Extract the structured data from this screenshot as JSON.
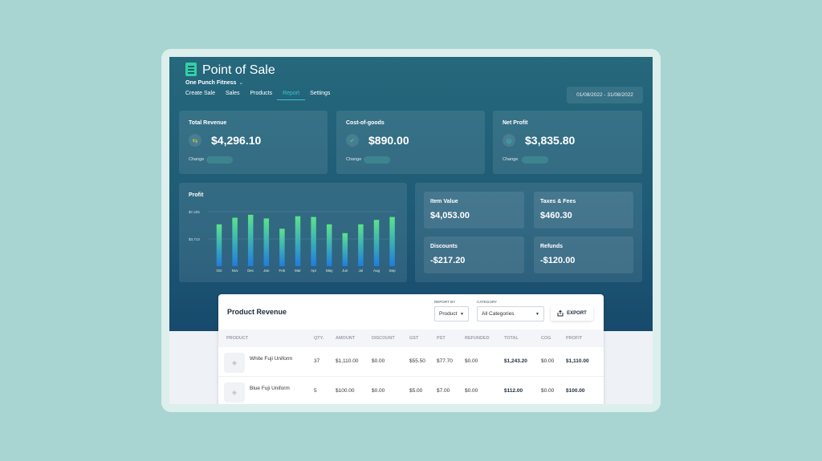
{
  "app": {
    "title": "Point of Sale",
    "business": "One Punch Fitness",
    "business_chevron": "⌄"
  },
  "nav": [
    "Create Sale",
    "Sales",
    "Products",
    "Report",
    "Settings"
  ],
  "date_range": "01/08/2022 - 31/08/2022",
  "stats": [
    {
      "label": "Total Revenue",
      "value": "$4,296.10",
      "icon": "exchange-icon",
      "icon_glyph": "⇆",
      "icon_color": "#e4c53a",
      "change_label": "Change"
    },
    {
      "label": "Cost-of-goods",
      "value": "$890.00",
      "icon": "check-badge-icon",
      "icon_glyph": "✔",
      "icon_color": "#39c27a",
      "change_label": "Change"
    },
    {
      "label": "Net Profit",
      "value": "$3,835.80",
      "icon": "target-icon",
      "icon_glyph": "◎",
      "icon_color": "#2fc6c0",
      "change_label": "Change"
    }
  ],
  "chart_data": {
    "type": "bar",
    "title": "Profit",
    "categories": [
      "Oct",
      "Nov",
      "Dec",
      "Jan",
      "Feb",
      "Mar",
      "Apr",
      "May",
      "Jun",
      "Jul",
      "Aug",
      "Sep"
    ],
    "values": [
      5700,
      6600,
      7000,
      6500,
      5100,
      6800,
      6700,
      5700,
      4500,
      5700,
      6300,
      6700
    ],
    "ytick_labels": [
      "$7,425",
      "$3,713"
    ],
    "ytick_values": [
      7425,
      3713
    ],
    "ylim": [
      0,
      7425
    ],
    "grid": true,
    "colors": {
      "top": "#5be38a",
      "bottom": "#1f7ce0"
    }
  },
  "summary": [
    {
      "label": "Item Value",
      "value": "$4,053.00"
    },
    {
      "label": "Taxes & Fees",
      "value": "$460.30"
    },
    {
      "label": "Discounts",
      "value": "-$217.20"
    },
    {
      "label": "Refunds",
      "value": "-$120.00"
    }
  ],
  "product_revenue": {
    "title": "Product Revenue",
    "report_by": {
      "label": "REPORT BY",
      "value": "Product"
    },
    "category": {
      "label": "CATEGORY",
      "value": "All Categories"
    },
    "export_label": "EXPORT",
    "columns": [
      "PRODUCT",
      "QTY.",
      "AMOUNT",
      "DISCOUNT",
      "GST",
      "PST",
      "REFUNDED",
      "TOTAL",
      "COG",
      "PROFIT"
    ],
    "rows": [
      {
        "product": "White Fuji Uniform",
        "qty": "37",
        "amount": "$1,110.00",
        "discount": "$0.00",
        "gst": "$55.50",
        "pst": "$77.70",
        "refunded": "$0.00",
        "total": "$1,243.20",
        "cog": "$0.00",
        "profit": "$1,110.00"
      },
      {
        "product": "Blue Fuji Uniform",
        "qty": "5",
        "amount": "$100.00",
        "discount": "$0.00",
        "gst": "$5.00",
        "pst": "$7.00",
        "refunded": "$0.00",
        "total": "$112.00",
        "cog": "$0.00",
        "profit": "$100.00"
      }
    ]
  }
}
